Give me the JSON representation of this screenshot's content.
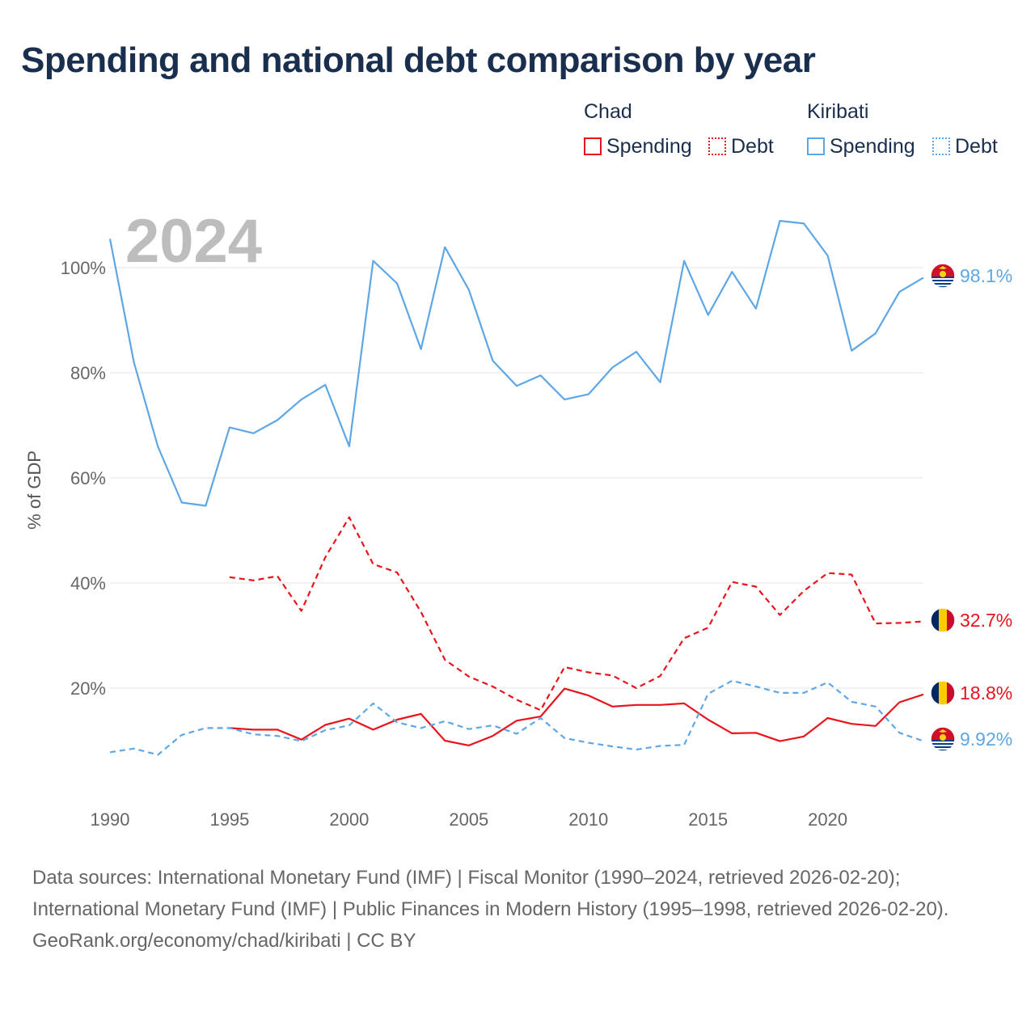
{
  "title": "Spending and national debt comparison by year",
  "legend": {
    "groups": [
      {
        "country": "Chad",
        "color": "#e8131b",
        "items": [
          {
            "label": "Spending",
            "style": "solid"
          },
          {
            "label": "Debt",
            "style": "dotted"
          }
        ]
      },
      {
        "country": "Kiribati",
        "color": "#5ea7e6",
        "items": [
          {
            "label": "Spending",
            "style": "solid"
          },
          {
            "label": "Debt",
            "style": "dotted"
          }
        ]
      }
    ]
  },
  "year_label": "2024",
  "footer": {
    "sources": "Data sources: International Monetary Fund (IMF) | Fiscal Monitor (1990–2024, retrieved 2026-02-20); International Monetary Fund (IMF) | Public Finances in Modern History (1995–1998, retrieved 2026-02-20).",
    "link": "GeoRank.org/economy/chad/kiribati | CC BY"
  },
  "chart_data": {
    "type": "line",
    "title": "Spending and national debt comparison by year",
    "xlabel": "",
    "ylabel": "% of GDP",
    "xlim": [
      1990,
      2024
    ],
    "ylim": [
      0,
      110
    ],
    "x_ticks": [
      1990,
      1995,
      2000,
      2005,
      2010,
      2015,
      2020
    ],
    "y_ticks": [
      20,
      40,
      60,
      80,
      100
    ],
    "y_tick_labels": [
      "20%",
      "40%",
      "60%",
      "80%",
      "100%"
    ],
    "grid": true,
    "legend_position": "top-right",
    "series": [
      {
        "name": "Kiribati Spending",
        "country": "Kiribati",
        "metric": "Spending",
        "color": "#5ea7e6",
        "dash": "solid",
        "end_label": "98.1%",
        "x": [
          1990,
          1991,
          1992,
          1993,
          1994,
          1995,
          1996,
          1997,
          1998,
          1999,
          2000,
          2001,
          2002,
          2003,
          2004,
          2005,
          2006,
          2007,
          2008,
          2009,
          2010,
          2011,
          2012,
          2013,
          2014,
          2015,
          2016,
          2017,
          2018,
          2019,
          2020,
          2021,
          2022,
          2023,
          2024
        ],
        "values": [
          105.5,
          82,
          66,
          55.3,
          54.7,
          69.6,
          68.5,
          71,
          74.9,
          77.7,
          66,
          101.3,
          97,
          84.5,
          103.9,
          95.8,
          82.3,
          77.5,
          79.5,
          74.9,
          75.9,
          81,
          84,
          78.2,
          101.3,
          91,
          99.2,
          92.2,
          108.9,
          108.4,
          102.3,
          84.2,
          87.5,
          95.4,
          98.1
        ]
      },
      {
        "name": "Chad Debt",
        "country": "Chad",
        "metric": "Debt",
        "color": "#e8131b",
        "dash": "dashed",
        "end_label": "32.7%",
        "x": [
          1995,
          1996,
          1997,
          1998,
          1999,
          2000,
          2001,
          2002,
          2003,
          2004,
          2005,
          2006,
          2007,
          2008,
          2009,
          2010,
          2011,
          2012,
          2013,
          2014,
          2015,
          2016,
          2017,
          2018,
          2019,
          2020,
          2021,
          2022,
          2023,
          2024
        ],
        "values": [
          41.1,
          40.5,
          41.3,
          34.7,
          44.9,
          52.5,
          43.6,
          42,
          34.5,
          25.4,
          22.2,
          20.3,
          17.8,
          15.8,
          24,
          23,
          22.4,
          20,
          22.3,
          29.5,
          31.5,
          40.2,
          39.3,
          33.9,
          38.5,
          41.9,
          41.6,
          32.3,
          32.4,
          32.7
        ]
      },
      {
        "name": "Chad Spending",
        "country": "Chad",
        "metric": "Spending",
        "color": "#e8131b",
        "dash": "solid",
        "end_label": "18.8%",
        "x": [
          1995,
          1996,
          1997,
          1998,
          1999,
          2000,
          2001,
          2002,
          2003,
          2004,
          2005,
          2006,
          2007,
          2008,
          2009,
          2010,
          2011,
          2012,
          2013,
          2014,
          2015,
          2016,
          2017,
          2018,
          2019,
          2020,
          2021,
          2022,
          2023,
          2024
        ],
        "values": [
          12.4,
          12.1,
          12.1,
          10.2,
          13,
          14.2,
          12.1,
          14,
          15.1,
          10,
          9.1,
          10.9,
          13.8,
          14.6,
          19.9,
          18.6,
          16.5,
          16.8,
          16.8,
          17.1,
          14,
          11.4,
          11.5,
          9.9,
          10.8,
          14.3,
          13.2,
          12.8,
          17.3,
          18.8
        ]
      },
      {
        "name": "Kiribati Debt",
        "country": "Kiribati",
        "metric": "Debt",
        "color": "#5ea7e6",
        "dash": "dashed",
        "end_label": "9.92%",
        "x": [
          1990,
          1991,
          1992,
          1993,
          1994,
          1995,
          1996,
          1997,
          1998,
          1999,
          2000,
          2001,
          2002,
          2003,
          2004,
          2005,
          2006,
          2007,
          2008,
          2009,
          2010,
          2011,
          2012,
          2013,
          2014,
          2015,
          2016,
          2017,
          2018,
          2019,
          2020,
          2021,
          2022,
          2023,
          2024
        ],
        "values": [
          7.8,
          8.5,
          7.3,
          11.1,
          12.4,
          12.4,
          11.2,
          10.9,
          9.9,
          12,
          12.9,
          17.1,
          13.5,
          12.4,
          13.7,
          12.2,
          12.9,
          11.3,
          14.3,
          10.5,
          9.6,
          8.9,
          8.3,
          9,
          9.2,
          18.9,
          21.4,
          20.3,
          19.1,
          19.1,
          21.1,
          17.4,
          16.5,
          11.5,
          9.92
        ]
      }
    ]
  }
}
